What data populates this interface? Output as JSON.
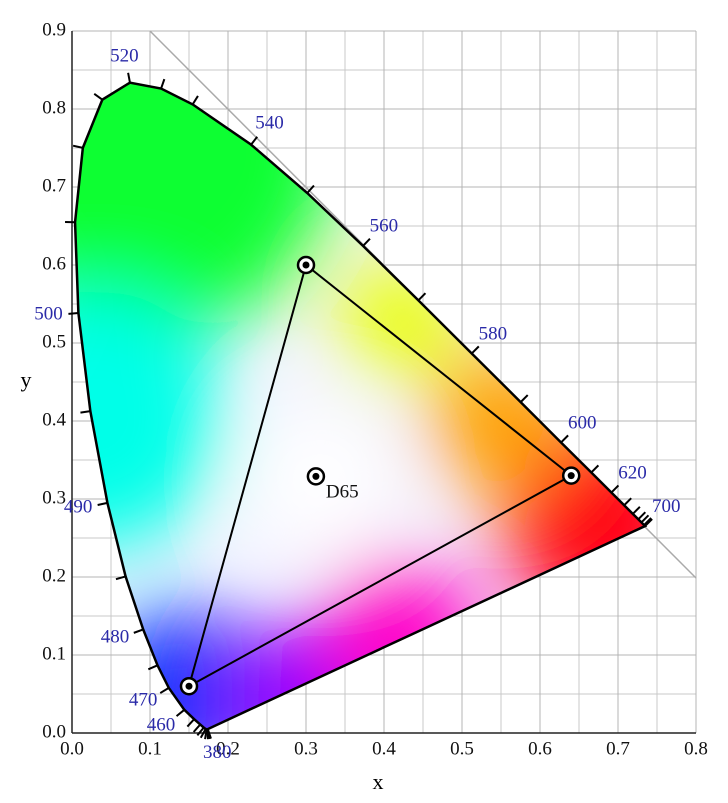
{
  "chart_data": {
    "type": "chromaticity",
    "xlabel": "x",
    "ylabel": "y",
    "xlim": [
      0,
      0.8
    ],
    "ylim": [
      0,
      0.9
    ],
    "xticks": [
      {
        "value": 0,
        "label": "0.0"
      },
      0.1,
      0.2,
      0.3,
      0.4,
      0.5,
      0.6,
      0.7,
      0.8
    ],
    "yticks": [
      {
        "value": 0,
        "label": "0.0"
      },
      0.1,
      0.2,
      0.3,
      0.4,
      0.5,
      0.6,
      0.7,
      0.8,
      0.9
    ],
    "grid": true,
    "minor_grid": true,
    "locus": {
      "wavelength": [
        380,
        null,
        null,
        null,
        null,
        null,
        null,
        null,
        460,
        470,
        null,
        480,
        null,
        490,
        null,
        500,
        null,
        null,
        null,
        520,
        null,
        null,
        540,
        null,
        560,
        null,
        580,
        null,
        600,
        null,
        620,
        null,
        null,
        null,
        null,
        null,
        700
      ],
      "x": [
        0.1741,
        0.1738,
        0.1733,
        0.1726,
        0.1714,
        0.1689,
        0.1644,
        0.1566,
        0.144,
        0.1241,
        0.1096,
        0.0913,
        0.0687,
        0.0454,
        0.0235,
        0.0082,
        0.0039,
        0.0139,
        0.0389,
        0.0743,
        0.1142,
        0.1547,
        0.2296,
        0.3016,
        0.3731,
        0.4441,
        0.5125,
        0.5752,
        0.627,
        0.6658,
        0.6915,
        0.7079,
        0.719,
        0.726,
        0.73,
        0.7334,
        0.7347
      ],
      "y": [
        0.005,
        0.0049,
        0.0048,
        0.0048,
        0.0051,
        0.0069,
        0.0109,
        0.0177,
        0.0297,
        0.0578,
        0.0868,
        0.1327,
        0.2007,
        0.295,
        0.4127,
        0.5384,
        0.6548,
        0.7502,
        0.812,
        0.8338,
        0.8262,
        0.8059,
        0.7543,
        0.6923,
        0.6245,
        0.5547,
        0.4866,
        0.4242,
        0.3725,
        0.334,
        0.3083,
        0.292,
        0.2809,
        0.274,
        0.27,
        0.2666,
        0.2653
      ]
    },
    "gamut": {
      "x": [
        0.64,
        0.3,
        0.15
      ],
      "y": [
        0.33,
        0.6,
        0.06
      ]
    },
    "white_point": {
      "name": "D65",
      "x": 0.3127,
      "y": 0.329
    }
  }
}
